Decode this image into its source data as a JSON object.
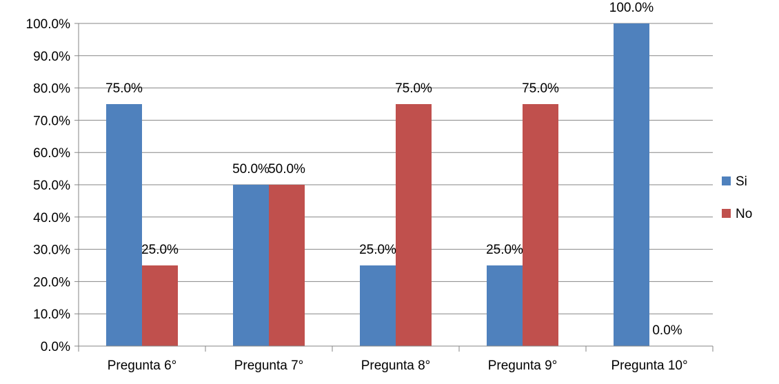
{
  "chart_data": {
    "type": "bar",
    "categories": [
      "Pregunta 6°",
      "Pregunta 7°",
      "Pregunta 8°",
      "Pregunta 9°",
      "Pregunta 10°"
    ],
    "series": [
      {
        "name": "Si",
        "values": [
          75.0,
          50.0,
          25.0,
          25.0,
          100.0
        ],
        "color": "#4F81BD"
      },
      {
        "name": "No",
        "values": [
          25.0,
          50.0,
          75.0,
          75.0,
          0.0
        ],
        "color": "#C0504D"
      }
    ],
    "data_labels": [
      [
        "75.0%",
        "50.0%",
        "25.0%",
        "25.0%",
        "100.0%"
      ],
      [
        "25.0%",
        "50.0%",
        "75.0%",
        "75.0%",
        "0.0%"
      ]
    ],
    "y_ticks": [
      0,
      10,
      20,
      30,
      40,
      50,
      60,
      70,
      80,
      90,
      100
    ],
    "y_tick_labels": [
      "0.0%",
      "10.0%",
      "20.0%",
      "30.0%",
      "40.0%",
      "50.0%",
      "60.0%",
      "70.0%",
      "80.0%",
      "90.0%",
      "100.0%"
    ],
    "ylim": [
      0,
      100
    ],
    "grid": true,
    "legend_position": "right",
    "title": "",
    "xlabel": "",
    "ylabel": "",
    "gridline_color": "#868686",
    "axis_color": "#868686"
  }
}
